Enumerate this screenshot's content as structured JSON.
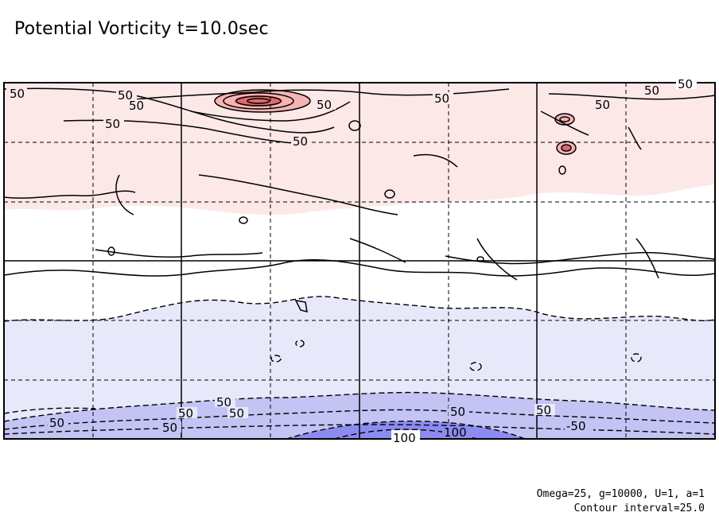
{
  "title": "Potential Vorticity t=10.0sec",
  "params_text": "Omega=25, g=10000, U=1, a=1",
  "contour_interval_text": "Contour interval=25.0",
  "contour_labels": [
    "50",
    "50",
    "50",
    "50",
    "50",
    "50",
    "50",
    "50",
    "50",
    "50",
    "50",
    "50",
    "50",
    "50",
    "50",
    "50",
    "50",
    "-50",
    "100",
    "100"
  ],
  "colors": {
    "positive_light": "#fde8e8",
    "positive_mid": "#f6b4b4",
    "positive_strong": "#e06a6a",
    "negative_light": "#e8e8fb",
    "negative_mid": "#c3c3f4",
    "negative_strong": "#8c8cf0",
    "contour": "#000000"
  }
}
